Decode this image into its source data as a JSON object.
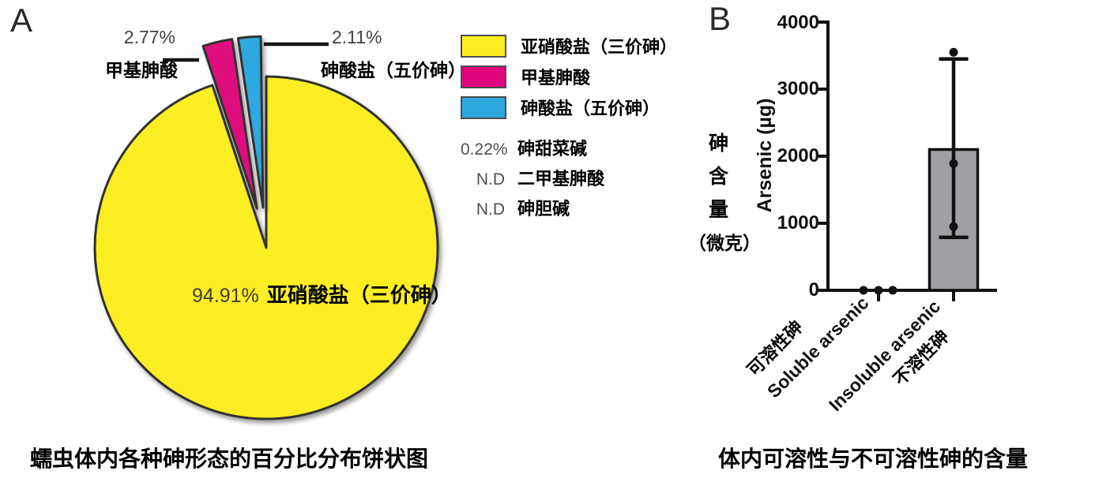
{
  "chart_data": [
    {
      "type": "pie",
      "title": "蠕虫体内各种砷形态的百分比分布饼状图",
      "start_angle_deg": 0,
      "direction": "clockwise",
      "slices": [
        {
          "label": "亚硝酸盐（三价砷）",
          "pct": 94.91,
          "color": "#FCEE21",
          "exploded": false
        },
        {
          "label": "甲基胂酸",
          "pct": 2.77,
          "color": "#E0077E",
          "exploded": true
        },
        {
          "label": "砷酸盐（五价砷）",
          "pct": 2.11,
          "color": "#2FA8E0",
          "exploded": true
        },
        {
          "label": "砷甜菜碱",
          "pct": 0.22,
          "color": null,
          "exploded": false
        },
        {
          "label": "二甲基胂酸",
          "pct": null,
          "note": "N.D"
        },
        {
          "label": "砷胆碱",
          "pct": null,
          "note": "N.D"
        }
      ]
    },
    {
      "type": "bar",
      "title": "体内可溶性与不可溶性砷的含量",
      "categories": [
        "Soluble arsenic",
        "Insoluble arsenic"
      ],
      "categories_zh": [
        "可溶性砷",
        "不溶性砷"
      ],
      "values": [
        0,
        2100
      ],
      "error_bars": [
        {
          "low": null,
          "high": null
        },
        {
          "low": 790,
          "high": 3450
        }
      ],
      "scatter_points": [
        [
          0,
          0,
          0
        ],
        [
          950,
          1890,
          3550
        ]
      ],
      "ylabel": "Arsenic (µg)",
      "ylabel_zh": "砷含量（微克）",
      "ylim": [
        0,
        4000
      ],
      "ytick_step": 1000,
      "grid": false,
      "legend": "none",
      "bar_color": "#A19FA4"
    }
  ],
  "panel_a": {
    "letter": "A",
    "callout_methyl": {
      "pct": "2.77%",
      "label": "甲基胂酸"
    },
    "callout_arsenate": {
      "pct": "2.11%",
      "label": "砷酸盐（五价砷）"
    },
    "center_label": {
      "pct": "94.91%",
      "label": "亚硝酸盐（三价砷）"
    },
    "legend": {
      "items": [
        {
          "color": "#FCEE21",
          "label": "亚硝酸盐（三价砷）"
        },
        {
          "color": "#E0077E",
          "label": "甲基胂酸"
        },
        {
          "color": "#2FA8E0",
          "label": "砷酸盐（五价砷）"
        }
      ],
      "text_rows": [
        {
          "value": "0.22%",
          "label": "砷甜菜碱"
        },
        {
          "value": "N.D",
          "label": "二甲基胂酸"
        },
        {
          "value": "N.D",
          "label": "砷胆碱"
        }
      ]
    },
    "caption": "蠕虫体内各种砷形态的百分比分布饼状图"
  },
  "panel_b": {
    "letter": "B",
    "y_axis_label_en": "Arsenic (µg)",
    "y_axis_label_zh_chars": [
      "砷",
      "含",
      "量"
    ],
    "y_axis_label_zh_unit": "（微克）",
    "y_ticks": [
      "4000",
      "3000",
      "2000",
      "1000",
      "0"
    ],
    "x_labels": {
      "cat1_zh": "可溶性砷",
      "cat1_en": "Soluble arsenic",
      "cat2_en": "Insoluble arsenic",
      "cat2_zh": "不溶性砷"
    },
    "caption": "体内可溶性与不可溶性砷的含量"
  }
}
